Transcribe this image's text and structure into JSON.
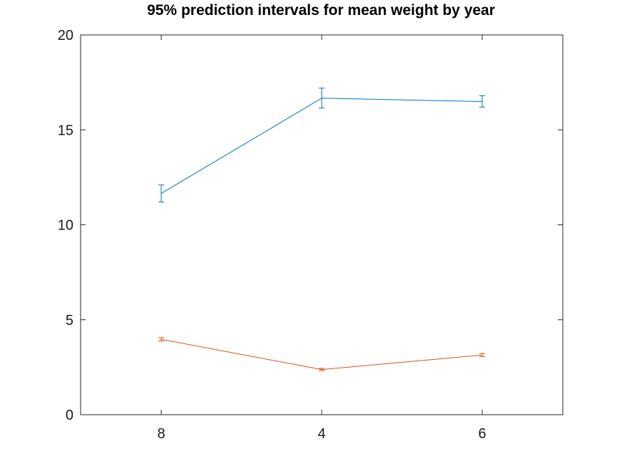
{
  "chart_data": {
    "type": "line",
    "title": "95% prediction intervals for mean weight by year",
    "xlabel": "",
    "ylabel": "",
    "categories": [
      "8",
      "4",
      "6"
    ],
    "ylim": [
      0,
      20
    ],
    "yticks": [
      0,
      5,
      10,
      15,
      20
    ],
    "grid": false,
    "series": [
      {
        "color": "#0072bd",
        "values": [
          11.65,
          16.67,
          16.49
        ],
        "lower": [
          11.2,
          16.15,
          16.2
        ],
        "upper": [
          12.1,
          17.2,
          16.8
        ]
      },
      {
        "color": "#d95319",
        "values": [
          3.97,
          2.38,
          3.14
        ],
        "lower": [
          3.88,
          2.32,
          3.06
        ],
        "upper": [
          4.06,
          2.44,
          3.22
        ]
      }
    ]
  }
}
